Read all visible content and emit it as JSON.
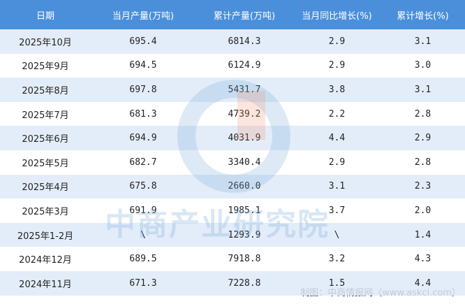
{
  "table": {
    "columns": [
      "日期",
      "当月产量(万吨)",
      "累计产量(万吨)",
      "当月同比增长(%)",
      "累计增长(%)"
    ],
    "rows": [
      [
        "2025年10月",
        "695.4",
        "6814.3",
        "2.9",
        "3.1"
      ],
      [
        "2025年9月",
        "694.5",
        "6124.9",
        "2.9",
        "3.0"
      ],
      [
        "2025年8月",
        "697.8",
        "5431.7",
        "3.8",
        "3.1"
      ],
      [
        "2025年7月",
        "681.3",
        "4739.2",
        "2.2",
        "2.8"
      ],
      [
        "2025年6月",
        "694.9",
        "4031.9",
        "4.4",
        "2.9"
      ],
      [
        "2025年5月",
        "682.7",
        "3340.4",
        "2.9",
        "2.8"
      ],
      [
        "2025年4月",
        "675.8",
        "2660.0",
        "3.1",
        "2.3"
      ],
      [
        "2025年3月",
        "691.9",
        "1985.1",
        "3.7",
        "2.0"
      ],
      [
        "2025年1-2月",
        "\\",
        "1293.9",
        "\\",
        "1.4"
      ],
      [
        "2024年12月",
        "689.5",
        "7918.8",
        "3.2",
        "4.3"
      ],
      [
        "2024年11月",
        "671.3",
        "7228.8",
        "1.5",
        "4.4"
      ]
    ]
  },
  "watermark": "中商产业研究院",
  "footer": {
    "source": "制图：中商情报网（www.askci.com）"
  }
}
